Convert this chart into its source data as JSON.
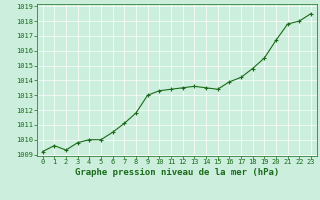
{
  "x": [
    0,
    1,
    2,
    3,
    4,
    5,
    6,
    7,
    8,
    9,
    10,
    11,
    12,
    13,
    14,
    15,
    16,
    17,
    18,
    19,
    20,
    21,
    22,
    23
  ],
  "y": [
    1009.2,
    1009.6,
    1009.3,
    1009.8,
    1010.0,
    1010.0,
    1010.5,
    1011.1,
    1011.8,
    1013.0,
    1013.3,
    1013.4,
    1013.5,
    1013.6,
    1013.5,
    1013.4,
    1013.9,
    1014.2,
    1014.8,
    1015.5,
    1016.7,
    1017.8,
    1018.0,
    1018.5
  ],
  "ylim": [
    1009,
    1019
  ],
  "xlim": [
    -0.5,
    23.5
  ],
  "yticks": [
    1009,
    1010,
    1011,
    1012,
    1013,
    1014,
    1015,
    1016,
    1017,
    1018,
    1019
  ],
  "xticks": [
    0,
    1,
    2,
    3,
    4,
    5,
    6,
    7,
    8,
    9,
    10,
    11,
    12,
    13,
    14,
    15,
    16,
    17,
    18,
    19,
    20,
    21,
    22,
    23
  ],
  "line_color": "#1a6b1a",
  "marker": "+",
  "marker_size": 3.5,
  "bg_color": "#cceedd",
  "grid_color": "#ffffff",
  "xlabel": "Graphe pression niveau de la mer (hPa)",
  "xlabel_color": "#1a6b1a",
  "tick_color": "#1a6b1a",
  "tick_fontsize": 5.0,
  "xlabel_fontsize": 6.5,
  "line_width": 0.8
}
